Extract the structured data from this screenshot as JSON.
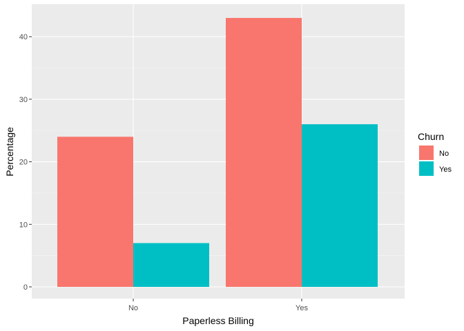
{
  "chart_data": {
    "type": "bar",
    "categories": [
      "No",
      "Yes"
    ],
    "series": [
      {
        "name": "No",
        "values": [
          24,
          43
        ],
        "color": "#F8766D"
      },
      {
        "name": "Yes",
        "values": [
          7,
          26
        ],
        "color": "#00BFC4"
      }
    ],
    "xlabel": "Paperless Billing",
    "ylabel": "Percentage",
    "ylim": [
      0,
      45
    ],
    "yticks": [
      0,
      10,
      20,
      30,
      40
    ],
    "legend": {
      "title": "Churn",
      "position": "right"
    },
    "grid": true,
    "panel_background": "#EBEBEB"
  }
}
